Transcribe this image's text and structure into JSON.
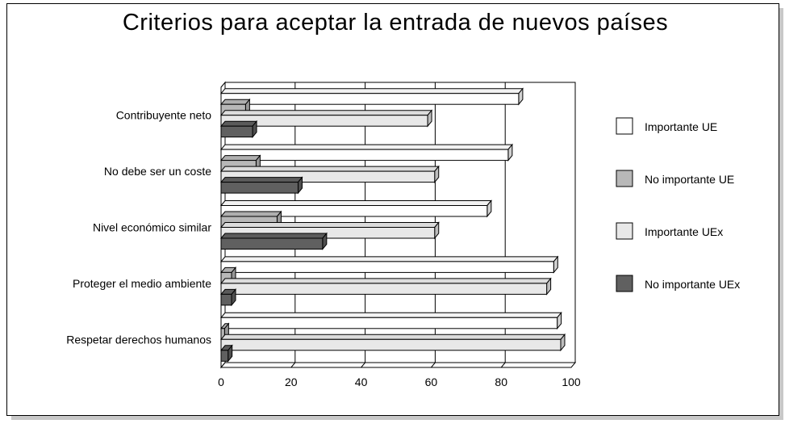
{
  "chart_data": {
    "type": "bar",
    "orientation": "horizontal",
    "title": "Criterios para aceptar la entrada de nuevos países",
    "categories": [
      "Contribuyente neto",
      "No debe ser un coste",
      "Nivel económico similar",
      "Proteger el medio ambiente",
      "Respetar derechos humanos"
    ],
    "series": [
      {
        "name": "Importante UE",
        "color": "#ffffff",
        "values": [
          85,
          82,
          76,
          95,
          96
        ]
      },
      {
        "name": "No importante UE",
        "color": "#b8b8b8",
        "values": [
          7,
          10,
          16,
          3,
          1
        ]
      },
      {
        "name": "Importante UEx",
        "color": "#e8e8e8",
        "values": [
          59,
          61,
          61,
          93,
          97
        ]
      },
      {
        "name": "No importante UEx",
        "color": "#606060",
        "values": [
          9,
          22,
          29,
          3,
          2
        ]
      }
    ],
    "xlim": [
      0,
      100
    ],
    "xticks": [
      "0",
      "20",
      "40",
      "60",
      "80",
      "100"
    ],
    "grid": "vertical",
    "legend": "right"
  }
}
